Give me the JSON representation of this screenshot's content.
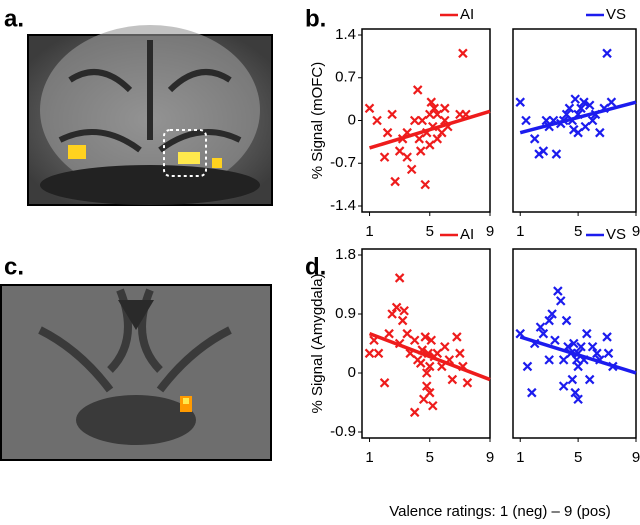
{
  "panel_labels": [
    "a.",
    "b.",
    "c.",
    "d."
  ],
  "x_label": "Valence ratings: 1 (neg) – 9 (pos)",
  "chart_data": [
    {
      "type": "scatter",
      "y_label": "% Signal (mOFC)",
      "xlim": [
        0.5,
        9
      ],
      "xticks": [
        1,
        5,
        9
      ],
      "ylim": [
        -1.4,
        1.4
      ],
      "yticks": [
        1.4,
        0.7,
        0,
        -0.7,
        -1.4
      ],
      "series": [
        {
          "name": "AI",
          "color": "#ee1c1c",
          "x": [
            1,
            1.5,
            2,
            2.2,
            2.5,
            2.7,
            3,
            3.2,
            3.5,
            3.5,
            3.8,
            4,
            4.2,
            4.3,
            4.5,
            4.7,
            4.8,
            5,
            5,
            5.2,
            5.3,
            5.5,
            5.5,
            5.8,
            6,
            6,
            6.2,
            7,
            7.2,
            7.4,
            4.4,
            5.1
          ],
          "values": [
            0.2,
            0,
            -0.6,
            -0.2,
            0.1,
            -1,
            -0.5,
            -0.3,
            -0.6,
            -0.2,
            -0.8,
            0,
            0.5,
            -0.3,
            0,
            -1.05,
            -0.2,
            0.1,
            -0.4,
            -0.1,
            0.2,
            0.1,
            -0.3,
            -0.2,
            0,
            0.2,
            -0.1,
            0.1,
            1.1,
            0.1,
            -0.5,
            0.3
          ]
        }
      ],
      "trend": {
        "x": [
          1,
          9
        ],
        "values": [
          -0.45,
          0.15
        ]
      }
    },
    {
      "type": "scatter",
      "xlim": [
        0.5,
        9
      ],
      "xticks": [
        1,
        5,
        9
      ],
      "ylim": [
        -1.4,
        1.4
      ],
      "series": [
        {
          "name": "VS",
          "color": "#1c1cee",
          "x": [
            1,
            1.4,
            2,
            2.3,
            2.6,
            2.8,
            3,
            3.3,
            3.5,
            3.8,
            4,
            4.2,
            4.4,
            4.6,
            4.8,
            5,
            5,
            5.2,
            5.4,
            5.5,
            5.8,
            6,
            6.2,
            6.5,
            6.8,
            7,
            7.3,
            4.7
          ],
          "values": [
            0.3,
            0,
            -0.3,
            -0.55,
            -0.5,
            0,
            -0.1,
            0,
            -0.55,
            -0.05,
            0,
            0.1,
            0.2,
            0,
            0.35,
            0.1,
            -0.2,
            0.2,
            0.3,
            -0.1,
            0.25,
            0,
            0.1,
            -0.2,
            0.2,
            1.1,
            0.3,
            -0.15
          ]
        }
      ],
      "trend": {
        "x": [
          1,
          9
        ],
        "values": [
          -0.2,
          0.3
        ]
      }
    },
    {
      "type": "scatter",
      "y_label": "% Signal (Amygdala)",
      "xlim": [
        0.5,
        9
      ],
      "xticks": [
        1,
        5,
        9
      ],
      "ylim": [
        -0.9,
        1.8
      ],
      "yticks": [
        1.8,
        0.9,
        0,
        -0.9
      ],
      "series": [
        {
          "name": "AI",
          "color": "#ee1c1c",
          "x": [
            1,
            1.3,
            1.6,
            2,
            2.3,
            2.5,
            2.8,
            3,
            3,
            3.2,
            3.3,
            3.5,
            3.7,
            4,
            4,
            4.2,
            4.4,
            4.6,
            4.7,
            4.8,
            4.8,
            4.9,
            5,
            5,
            5.1,
            5.3,
            5.5,
            5.8,
            6,
            6.3,
            6.5,
            6.8,
            7,
            7.2,
            7.5,
            5.2,
            4.5
          ],
          "values": [
            0.3,
            0.5,
            0.3,
            -0.15,
            0.6,
            0.9,
            1,
            0.45,
            1.45,
            0.8,
            0.95,
            0.6,
            0.3,
            -0.6,
            0.5,
            0.2,
            0.15,
            -0.4,
            0.55,
            0,
            -0.2,
            0.3,
            -0.3,
            0.1,
            0.5,
            0.25,
            0.3,
            0.1,
            0.4,
            0.2,
            -0.1,
            0.55,
            0.3,
            0.1,
            -0.15,
            -0.5,
            0.35
          ]
        }
      ],
      "trend": {
        "x": [
          1,
          9
        ],
        "values": [
          0.6,
          -0.1
        ]
      }
    },
    {
      "type": "scatter",
      "xlim": [
        0.5,
        9
      ],
      "xticks": [
        1,
        5,
        9
      ],
      "ylim": [
        -0.9,
        1.8
      ],
      "series": [
        {
          "name": "VS",
          "color": "#1c1cee",
          "x": [
            1,
            1.5,
            1.8,
            2,
            2.4,
            2.6,
            3,
            3.2,
            3,
            3.4,
            3.6,
            3.8,
            4,
            4,
            4.2,
            4.3,
            4.5,
            4.6,
            4.7,
            4.8,
            4.9,
            5,
            5,
            5,
            5.2,
            5.4,
            5.6,
            5.8,
            6,
            6.3,
            6.5,
            7,
            7.4,
            7.1
          ],
          "values": [
            0.6,
            0.1,
            -0.3,
            0.45,
            0.7,
            0.6,
            0.8,
            0.9,
            0.2,
            0.5,
            1.25,
            1.1,
            0.2,
            -0.2,
            0.8,
            0.4,
            0.3,
            -0.1,
            0.45,
            -0.3,
            0.2,
            -0.4,
            0.1,
            0.3,
            0.4,
            0.2,
            0.6,
            -0.1,
            0.4,
            0.3,
            0.2,
            0.55,
            0.1,
            0.3
          ]
        }
      ],
      "trend": {
        "x": [
          1,
          9
        ],
        "values": [
          0.55,
          0
        ]
      }
    }
  ]
}
